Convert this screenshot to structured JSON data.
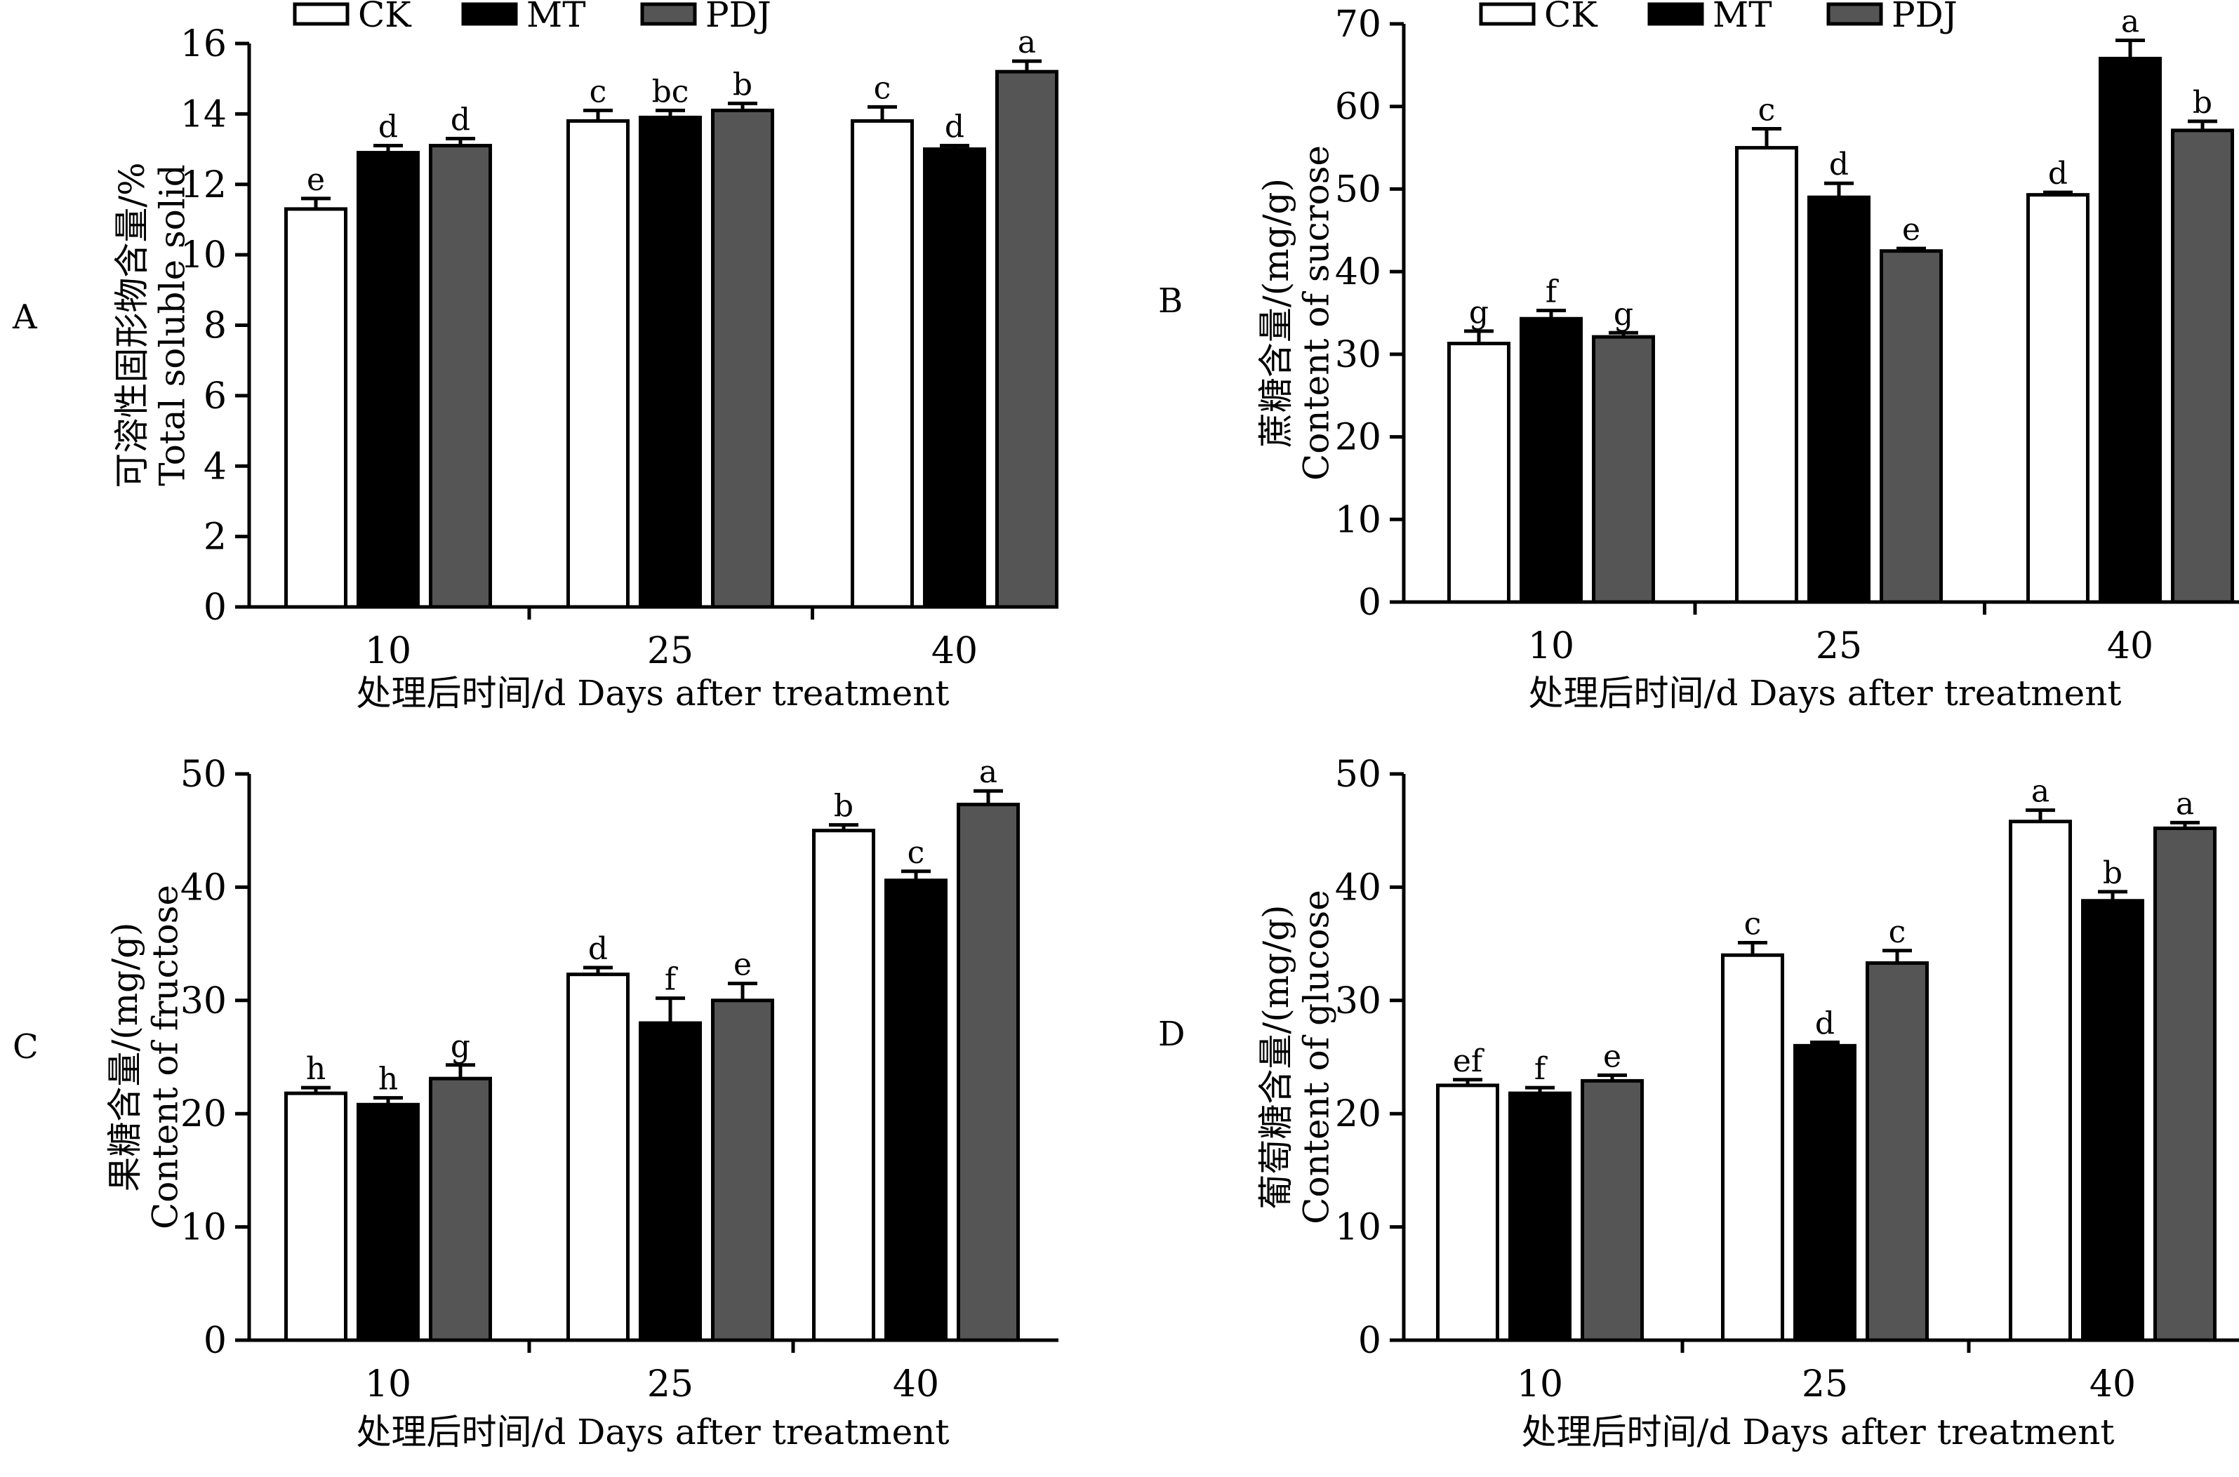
{
  "legend": {
    "items": [
      {
        "name": "CK",
        "color": "#ffffff"
      },
      {
        "name": "MT",
        "color": "#000000"
      },
      {
        "name": "PDJ",
        "color": "#555555"
      }
    ]
  },
  "chart_data": [
    {
      "id": "A",
      "type": "bar",
      "panel_label": "A",
      "categories": [
        "10",
        "25",
        "40"
      ],
      "ylim": [
        0,
        16
      ],
      "yticks": [
        0,
        2,
        4,
        6,
        8,
        10,
        12,
        14,
        16
      ],
      "ylabel_cn": "可溶性固形物含量/%",
      "ylabel_en": "Total soluble solid",
      "xlabel": "处理后时间/d Days after treatment",
      "series": [
        {
          "name": "CK",
          "values": [
            11.3,
            13.8,
            13.8
          ],
          "errors": [
            0.3,
            0.3,
            0.4
          ],
          "letters": [
            "e",
            "c",
            "c"
          ]
        },
        {
          "name": "MT",
          "values": [
            12.9,
            13.9,
            13.0
          ],
          "errors": [
            0.2,
            0.2,
            0.1
          ],
          "letters": [
            "d",
            "bc",
            "d"
          ]
        },
        {
          "name": "PDJ",
          "values": [
            13.1,
            14.1,
            15.2
          ],
          "errors": [
            0.2,
            0.2,
            0.3
          ],
          "letters": [
            "d",
            "b",
            "a"
          ]
        }
      ]
    },
    {
      "id": "B",
      "type": "bar",
      "panel_label": "B",
      "categories": [
        "10",
        "25",
        "40"
      ],
      "ylim": [
        0,
        70
      ],
      "yticks": [
        0,
        10,
        20,
        30,
        40,
        50,
        60,
        70
      ],
      "ylabel_cn": "蔗糖含量/(mg/g)",
      "ylabel_en": "Content of sucrose",
      "xlabel": "处理后时间/d Days after treatment",
      "series": [
        {
          "name": "CK",
          "values": [
            31.3,
            55.0,
            49.3
          ],
          "errors": [
            1.5,
            2.3,
            0.3
          ],
          "letters": [
            "g",
            "c",
            "d"
          ]
        },
        {
          "name": "MT",
          "values": [
            34.3,
            49.0,
            65.8
          ],
          "errors": [
            1.0,
            1.7,
            2.2
          ],
          "letters": [
            "f",
            "d",
            "a"
          ]
        },
        {
          "name": "PDJ",
          "values": [
            32.1,
            42.5,
            57.1
          ],
          "errors": [
            0.5,
            0.3,
            1.1
          ],
          "letters": [
            "g",
            "e",
            "b"
          ]
        }
      ]
    },
    {
      "id": "C",
      "type": "bar",
      "panel_label": "C",
      "categories": [
        "10",
        "25",
        "40"
      ],
      "ylim": [
        0,
        50
      ],
      "yticks": [
        0,
        10,
        20,
        30,
        40,
        50
      ],
      "ylabel_cn": "果糖含量/(mg/g)",
      "ylabel_en": "Content of fructose",
      "xlabel": "处理后时间/d Days after treatment",
      "series": [
        {
          "name": "CK",
          "values": [
            21.8,
            32.3,
            45.0
          ],
          "errors": [
            0.5,
            0.6,
            0.5
          ],
          "letters": [
            "h",
            "d",
            "b"
          ]
        },
        {
          "name": "MT",
          "values": [
            20.8,
            28.0,
            40.6
          ],
          "errors": [
            0.6,
            2.2,
            0.8
          ],
          "letters": [
            "h",
            "f",
            "c"
          ]
        },
        {
          "name": "PDJ",
          "values": [
            23.1,
            30.0,
            47.3
          ],
          "errors": [
            1.2,
            1.5,
            1.2
          ],
          "letters": [
            "g",
            "e",
            "a"
          ]
        }
      ]
    },
    {
      "id": "D",
      "type": "bar",
      "panel_label": "D",
      "categories": [
        "10",
        "25",
        "40"
      ],
      "ylim": [
        0,
        50
      ],
      "yticks": [
        0,
        10,
        20,
        30,
        40,
        50
      ],
      "ylabel_cn": "葡萄糖含量/(mg/g)",
      "ylabel_en": "Content of glucose",
      "xlabel": "处理后时间/d Days after treatment",
      "series": [
        {
          "name": "CK",
          "values": [
            22.5,
            34.0,
            45.8
          ],
          "errors": [
            0.5,
            1.1,
            1.0
          ],
          "letters": [
            "ef",
            "c",
            "a"
          ]
        },
        {
          "name": "MT",
          "values": [
            21.8,
            26.0,
            38.8
          ],
          "errors": [
            0.5,
            0.3,
            0.8
          ],
          "letters": [
            "f",
            "d",
            "b"
          ]
        },
        {
          "name": "PDJ",
          "values": [
            22.9,
            33.3,
            45.2
          ],
          "errors": [
            0.5,
            1.1,
            0.5
          ],
          "letters": [
            "e",
            "c",
            "a"
          ]
        }
      ]
    }
  ]
}
